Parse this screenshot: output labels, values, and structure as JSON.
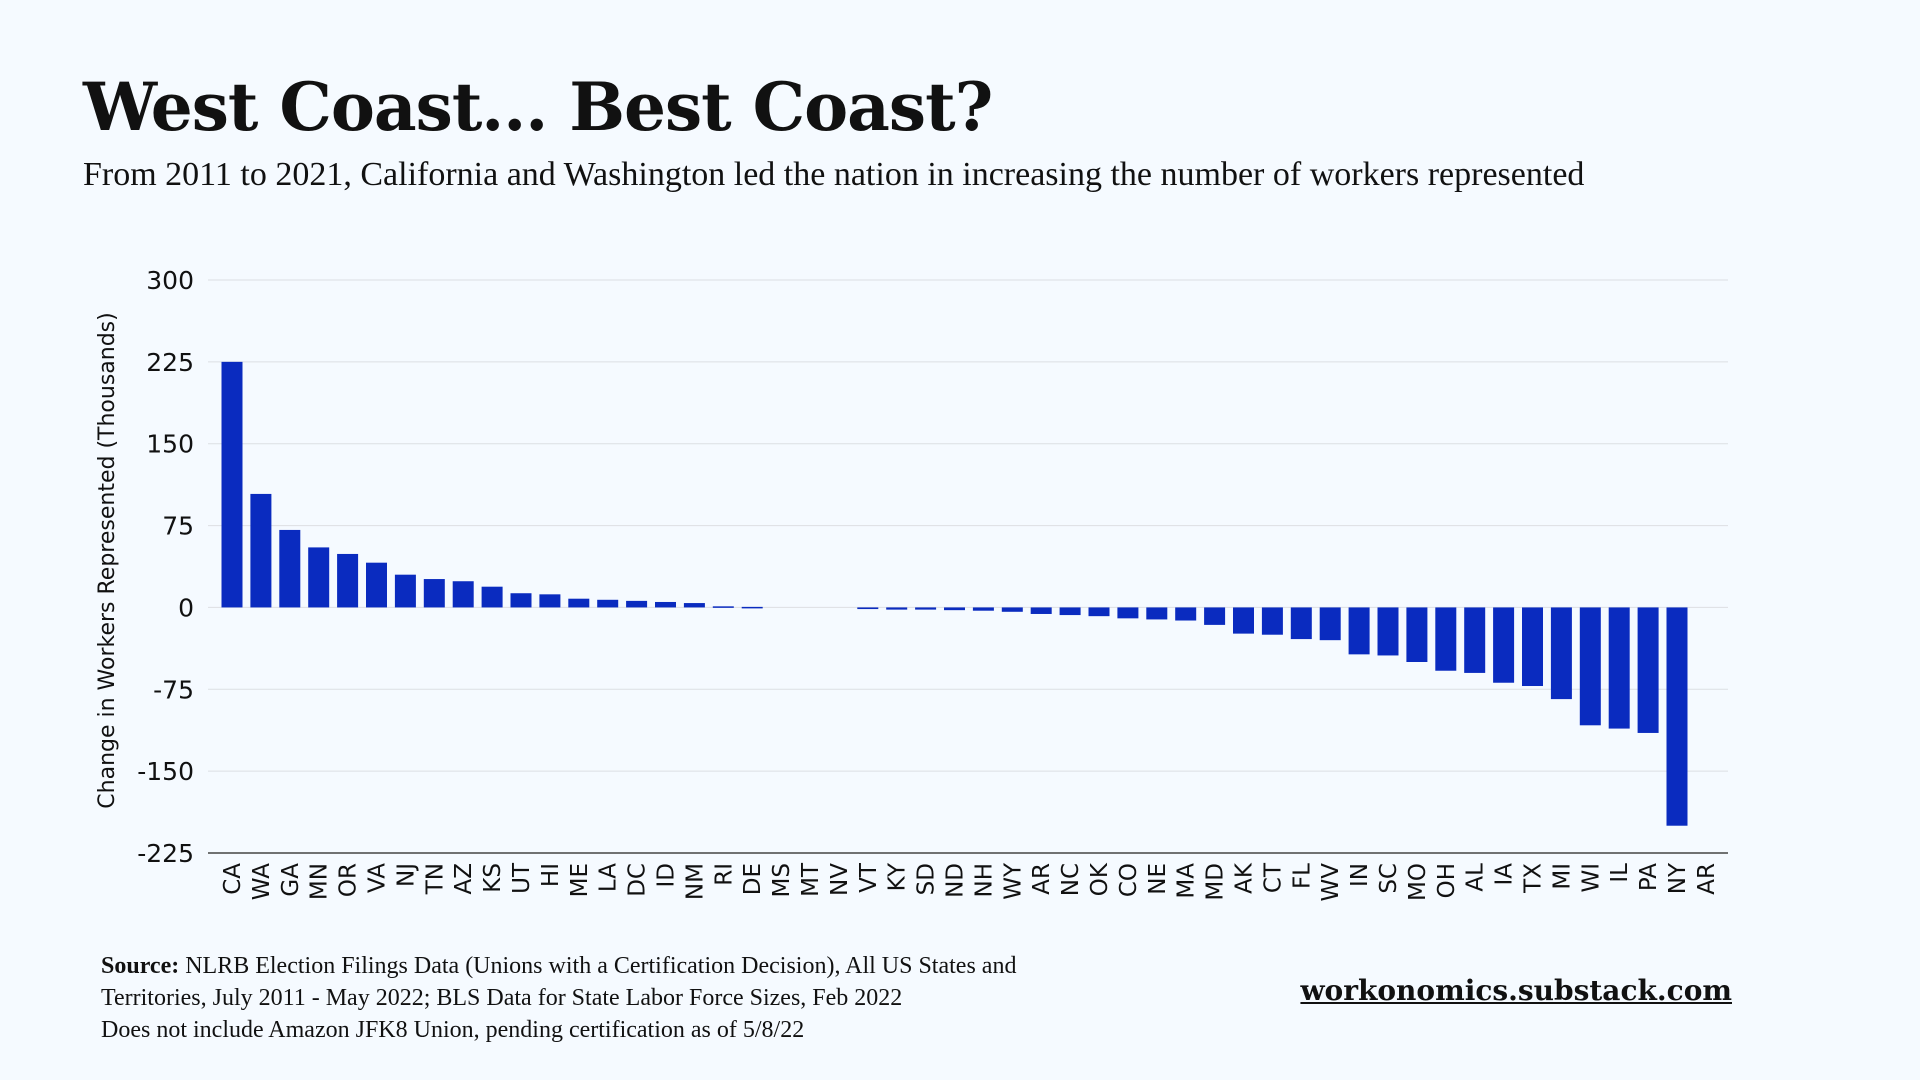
{
  "title": "West Coast... Best Coast?",
  "subtitle": "From 2011 to 2021, California and Washington led the nation in increasing the number of workers represented",
  "footer": {
    "source_label": "Source:",
    "source_line1": "NLRB Election Filings Data (Unions with a Certification Decision), All US States and",
    "source_line2": "Territories, July 2011 - May 2022; BLS Data for State Labor Force Sizes, Feb 2022",
    "note": "Does not include Amazon JFK8 Union, pending certification as of 5/8/22"
  },
  "site": "workonomics.substack.com",
  "colors": {
    "bar": "#0a2bbf",
    "grid": "#dcdfe3",
    "background": "#f5faff"
  },
  "chart_data": {
    "type": "bar",
    "ylabel": "Change in Workers Represented (Thousands)",
    "ylim": [
      -225,
      300
    ],
    "yticks": [
      300,
      225,
      150,
      75,
      0,
      -75,
      -150,
      -225
    ],
    "grid": true,
    "categories": [
      "CA",
      "WA",
      "GA",
      "MN",
      "OR",
      "VA",
      "NJ",
      "TN",
      "AZ",
      "KS",
      "UT",
      "HI",
      "ME",
      "LA",
      "DC",
      "ID",
      "NM",
      "RI",
      "DE",
      "MS",
      "MT",
      "NV",
      "VT",
      "KY",
      "SD",
      "ND",
      "NH",
      "WY",
      "AR",
      "NC",
      "OK",
      "CO",
      "NE",
      "MA",
      "MD",
      "AK",
      "CT",
      "FL",
      "WV",
      "IN",
      "SC",
      "MO",
      "OH",
      "AL",
      "IA",
      "TX",
      "MI",
      "WI",
      "IL",
      "PA",
      "NY",
      "AR"
    ],
    "values": [
      225,
      104,
      71,
      55,
      49,
      41,
      30,
      26,
      24,
      19,
      13,
      12,
      8,
      7,
      6,
      5,
      4,
      1,
      0.5,
      0,
      0,
      0,
      -1.5,
      -2,
      -2,
      -2.5,
      -3,
      -4,
      -6,
      -7,
      -8,
      -10,
      -11,
      -12,
      -16,
      -24,
      -25,
      -29,
      -30,
      -43,
      -44,
      -50,
      -58,
      -60,
      -69,
      -72,
      -84,
      -108,
      -111,
      -115,
      -200,
      0
    ]
  }
}
